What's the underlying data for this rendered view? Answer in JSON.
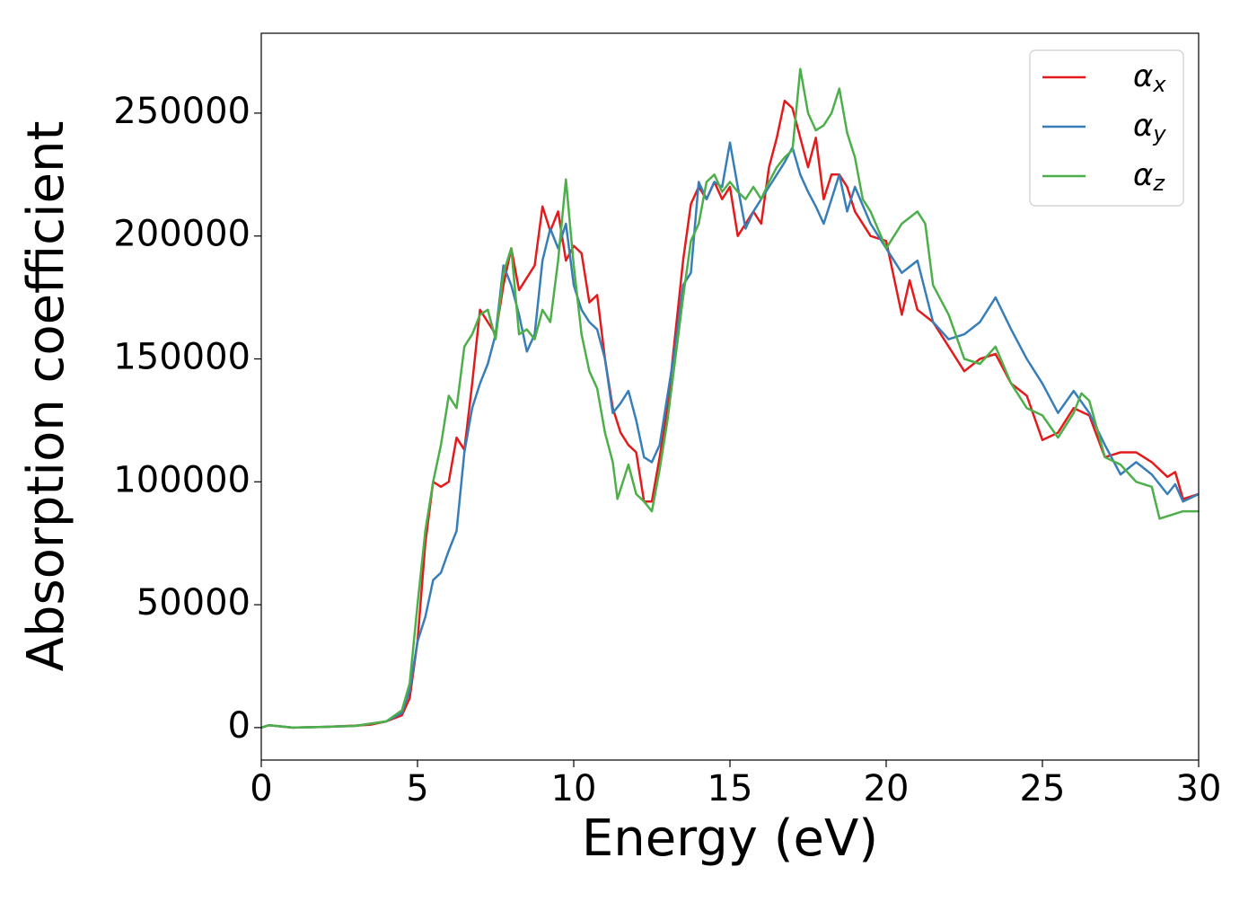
{
  "chart_data": {
    "type": "line",
    "xlabel": "Energy (eV)",
    "ylabel": "Absorption coefficient",
    "xlim": [
      0,
      30
    ],
    "xticks": [
      0,
      5,
      10,
      15,
      20,
      25,
      30
    ],
    "ylim": [
      -13200,
      282500
    ],
    "yticks": [
      0,
      50000,
      100000,
      150000,
      200000,
      250000
    ],
    "legend": "upper right",
    "grid": false,
    "series": [
      {
        "name": "αx",
        "color": "#e41a1c",
        "x": [
          0,
          0.25,
          1,
          2,
          3,
          3.5,
          4,
          4.5,
          4.75,
          5,
          5.25,
          5.5,
          5.75,
          6,
          6.25,
          6.5,
          6.75,
          7,
          7.25,
          7.5,
          7.75,
          8,
          8.25,
          8.5,
          8.75,
          9,
          9.25,
          9.5,
          9.75,
          10,
          10.25,
          10.5,
          10.75,
          11,
          11.25,
          11.5,
          11.75,
          12,
          12.25,
          12.5,
          12.75,
          13,
          13.25,
          13.5,
          13.75,
          14,
          14.25,
          14.5,
          14.75,
          15,
          15.25,
          15.5,
          15.75,
          16,
          16.25,
          16.5,
          16.75,
          17,
          17.25,
          17.5,
          17.75,
          18,
          18.25,
          18.5,
          18.75,
          19,
          19.5,
          20,
          20.5,
          20.75,
          21,
          21.5,
          22,
          22.5,
          23,
          23.5,
          24,
          24.5,
          25,
          25.5,
          26,
          26.5,
          27,
          27.5,
          28,
          28.5,
          29,
          29.25,
          29.5,
          30
        ],
        "values": [
          0,
          1000,
          0,
          300,
          800,
          1200,
          2500,
          5000,
          12000,
          35000,
          75000,
          100000,
          98000,
          100000,
          118000,
          113000,
          140000,
          170000,
          165000,
          160000,
          180000,
          195000,
          178000,
          183000,
          188000,
          212000,
          202000,
          210000,
          190000,
          196000,
          193000,
          173000,
          176000,
          150000,
          130000,
          120000,
          115000,
          112000,
          92000,
          92000,
          110000,
          130000,
          160000,
          190000,
          213000,
          220000,
          215000,
          222000,
          215000,
          220000,
          200000,
          205000,
          210000,
          205000,
          228000,
          240000,
          255000,
          252000,
          240000,
          228000,
          240000,
          215000,
          225000,
          225000,
          220000,
          210000,
          200000,
          198000,
          168000,
          182000,
          170000,
          165000,
          155000,
          145000,
          150000,
          152000,
          140000,
          135000,
          117000,
          120000,
          130000,
          127000,
          110000,
          112000,
          112000,
          108000,
          102000,
          104000,
          93000,
          95000
        ]
      },
      {
        "name": "αy",
        "color": "#377eb8",
        "x": [
          0,
          0.25,
          1,
          2,
          3,
          4,
          4.5,
          4.75,
          5,
          5.25,
          5.5,
          5.75,
          6,
          6.25,
          6.5,
          6.75,
          7,
          7.25,
          7.5,
          7.75,
          8,
          8.25,
          8.5,
          8.75,
          9,
          9.25,
          9.5,
          9.75,
          10,
          10.25,
          10.5,
          10.75,
          11,
          11.25,
          11.5,
          11.75,
          12,
          12.25,
          12.5,
          12.75,
          13,
          13.25,
          13.5,
          13.75,
          14,
          14.25,
          14.5,
          14.75,
          15,
          15.25,
          15.5,
          15.75,
          16,
          16.25,
          16.5,
          16.75,
          17,
          17.25,
          17.5,
          17.75,
          18,
          18.25,
          18.5,
          18.75,
          19,
          19.5,
          20,
          20.5,
          21,
          21.5,
          22,
          22.5,
          23,
          23.5,
          24,
          24.5,
          25,
          25.5,
          26,
          26.5,
          27,
          27.5,
          28,
          28.5,
          29,
          29.25,
          29.5,
          30
        ],
        "values": [
          0,
          1000,
          0,
          300,
          700,
          2500,
          6000,
          15000,
          35000,
          45000,
          60000,
          63000,
          72000,
          80000,
          112000,
          130000,
          140000,
          148000,
          160000,
          188000,
          180000,
          168000,
          153000,
          160000,
          190000,
          203000,
          195000,
          205000,
          180000,
          170000,
          165000,
          162000,
          150000,
          128000,
          132000,
          137000,
          125000,
          110000,
          108000,
          115000,
          135000,
          155000,
          180000,
          185000,
          222000,
          215000,
          222000,
          220000,
          238000,
          220000,
          203000,
          210000,
          215000,
          220000,
          225000,
          230000,
          236000,
          225000,
          218000,
          212000,
          205000,
          215000,
          225000,
          210000,
          220000,
          205000,
          195000,
          185000,
          190000,
          165000,
          158000,
          160000,
          165000,
          175000,
          162000,
          150000,
          140000,
          128000,
          137000,
          128000,
          115000,
          103000,
          108000,
          103000,
          95000,
          99000,
          92000,
          95000
        ]
      },
      {
        "name": "αz",
        "color": "#4daf4a",
        "x": [
          0,
          0.25,
          1,
          2,
          3,
          4,
          4.5,
          4.75,
          5,
          5.25,
          5.5,
          5.75,
          6,
          6.25,
          6.5,
          6.75,
          7,
          7.25,
          7.5,
          7.75,
          8,
          8.25,
          8.5,
          8.75,
          9,
          9.25,
          9.5,
          9.75,
          10,
          10.25,
          10.5,
          10.75,
          11,
          11.25,
          11.4,
          11.75,
          12,
          12.25,
          12.5,
          12.75,
          13,
          13.25,
          13.5,
          13.75,
          14,
          14.25,
          14.5,
          14.75,
          15,
          15.25,
          15.5,
          15.75,
          16,
          16.25,
          16.5,
          16.75,
          17,
          17.25,
          17.5,
          17.75,
          18,
          18.25,
          18.5,
          18.75,
          19,
          19.25,
          19.5,
          20,
          20.5,
          21,
          21.25,
          21.5,
          22,
          22.5,
          23,
          23.5,
          24,
          24.5,
          25,
          25.5,
          26,
          26.25,
          26.5,
          27,
          27.5,
          28,
          28.5,
          28.75,
          29,
          29.5,
          30
        ],
        "values": [
          0,
          1000,
          0,
          300,
          700,
          2500,
          7000,
          18000,
          50000,
          80000,
          100000,
          115000,
          135000,
          130000,
          155000,
          160000,
          168000,
          170000,
          158000,
          185000,
          195000,
          160000,
          162000,
          158000,
          170000,
          165000,
          190000,
          223000,
          188000,
          160000,
          145000,
          138000,
          120000,
          108000,
          93000,
          107000,
          95000,
          92000,
          88000,
          105000,
          125000,
          150000,
          175000,
          198000,
          205000,
          222000,
          225000,
          218000,
          222000,
          218000,
          215000,
          220000,
          215000,
          222000,
          228000,
          232000,
          235000,
          268000,
          250000,
          243000,
          245000,
          250000,
          260000,
          242000,
          232000,
          215000,
          210000,
          195000,
          205000,
          210000,
          205000,
          180000,
          168000,
          150000,
          148000,
          155000,
          140000,
          130000,
          127000,
          118000,
          128000,
          136000,
          133000,
          110000,
          107000,
          100000,
          98000,
          85000,
          86000,
          88000,
          88000
        ]
      }
    ]
  }
}
